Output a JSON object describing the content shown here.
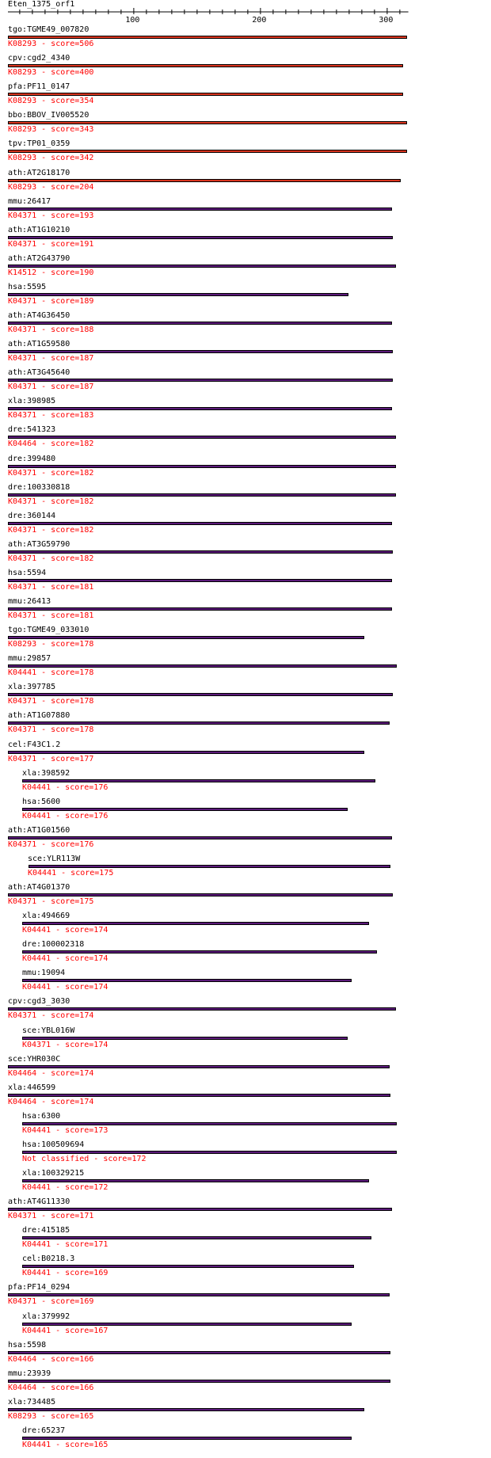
{
  "title": "Eten_1375_orf1",
  "axis": {
    "ticks": [
      100,
      200,
      300
    ],
    "min": 1,
    "max": 317
  },
  "colors": {
    "high": "#d8341e",
    "mid": "#5b1a7a",
    "text_sub": "#ff0000"
  },
  "hits": [
    {
      "label": "tgo:TGME49_007820",
      "sub": "K08293 - score=506",
      "start": 1,
      "end": 316,
      "level": "high",
      "indent": 0
    },
    {
      "label": "cpv:cgd2_4340",
      "sub": "K08293 - score=400",
      "start": 1,
      "end": 313,
      "level": "high",
      "indent": 0
    },
    {
      "label": "pfa:PF11_0147",
      "sub": "K08293 - score=354",
      "start": 1,
      "end": 313,
      "level": "high",
      "indent": 0
    },
    {
      "label": "bbo:BBOV_IV005520",
      "sub": "K08293 - score=343",
      "start": 1,
      "end": 316,
      "level": "high",
      "indent": 0
    },
    {
      "label": "tpv:TP01_0359",
      "sub": "K08293 - score=342",
      "start": 1,
      "end": 316,
      "level": "high",
      "indent": 0
    },
    {
      "label": "ath:AT2G18170",
      "sub": "K08293 - score=204",
      "start": 1,
      "end": 311,
      "level": "high",
      "indent": 0
    },
    {
      "label": "mmu:26417",
      "sub": "K04371 - score=193",
      "start": 1,
      "end": 304,
      "level": "mid",
      "indent": 0
    },
    {
      "label": "ath:AT1G10210",
      "sub": "K04371 - score=191",
      "start": 1,
      "end": 305,
      "level": "mid",
      "indent": 0
    },
    {
      "label": "ath:AT2G43790",
      "sub": "K14512 - score=190",
      "start": 1,
      "end": 307,
      "level": "mid",
      "indent": 0
    },
    {
      "label": "hsa:5595",
      "sub": "K04371 - score=189",
      "start": 1,
      "end": 270,
      "level": "mid",
      "indent": 0
    },
    {
      "label": "ath:AT4G36450",
      "sub": "K04371 - score=188",
      "start": 1,
      "end": 304,
      "level": "mid",
      "indent": 0
    },
    {
      "label": "ath:AT1G59580",
      "sub": "K04371 - score=187",
      "start": 1,
      "end": 305,
      "level": "mid",
      "indent": 0
    },
    {
      "label": "ath:AT3G45640",
      "sub": "K04371 - score=187",
      "start": 1,
      "end": 305,
      "level": "mid",
      "indent": 0
    },
    {
      "label": "xla:398985",
      "sub": "K04371 - score=183",
      "start": 1,
      "end": 304,
      "level": "mid",
      "indent": 0
    },
    {
      "label": "dre:541323",
      "sub": "K04464 - score=182",
      "start": 1,
      "end": 307,
      "level": "mid",
      "indent": 0
    },
    {
      "label": "dre:399480",
      "sub": "K04371 - score=182",
      "start": 1,
      "end": 307,
      "level": "mid",
      "indent": 0
    },
    {
      "label": "dre:100330818",
      "sub": "K04371 - score=182",
      "start": 1,
      "end": 307,
      "level": "mid",
      "indent": 0
    },
    {
      "label": "dre:360144",
      "sub": "K04371 - score=182",
      "start": 1,
      "end": 304,
      "level": "mid",
      "indent": 0
    },
    {
      "label": "ath:AT3G59790",
      "sub": "K04371 - score=182",
      "start": 1,
      "end": 305,
      "level": "mid",
      "indent": 0
    },
    {
      "label": "hsa:5594",
      "sub": "K04371 - score=181",
      "start": 1,
      "end": 304,
      "level": "mid",
      "indent": 0
    },
    {
      "label": "mmu:26413",
      "sub": "K04371 - score=181",
      "start": 1,
      "end": 304,
      "level": "mid",
      "indent": 0
    },
    {
      "label": "tgo:TGME49_033010",
      "sub": "K08293 - score=178",
      "start": 1,
      "end": 282,
      "level": "mid",
      "indent": 0
    },
    {
      "label": "mmu:29857",
      "sub": "K04441 - score=178",
      "start": 1,
      "end": 308,
      "level": "mid",
      "indent": 0
    },
    {
      "label": "xla:397785",
      "sub": "K04371 - score=178",
      "start": 1,
      "end": 305,
      "level": "mid",
      "indent": 0
    },
    {
      "label": "ath:AT1G07880",
      "sub": "K04371 - score=178",
      "start": 1,
      "end": 302,
      "level": "mid",
      "indent": 0
    },
    {
      "label": "cel:F43C1.2",
      "sub": "K04371 - score=177",
      "start": 1,
      "end": 282,
      "level": "mid",
      "indent": 0
    },
    {
      "label": "xla:398592",
      "sub": "K04441 - score=176",
      "start": 12,
      "end": 291,
      "level": "mid",
      "indent": 18
    },
    {
      "label": "hsa:5600",
      "sub": "K04441 - score=176",
      "start": 12,
      "end": 269,
      "level": "mid",
      "indent": 18
    },
    {
      "label": "ath:AT1G01560",
      "sub": "K04371 - score=176",
      "start": 1,
      "end": 304,
      "level": "mid",
      "indent": 0
    },
    {
      "label": "sce:YLR113W",
      "sub": "K04441 - score=175",
      "start": 17,
      "end": 303,
      "level": "mid",
      "indent": 25
    },
    {
      "label": "ath:AT4G01370",
      "sub": "K04371 - score=175",
      "start": 1,
      "end": 305,
      "level": "mid",
      "indent": 0
    },
    {
      "label": "xla:494669",
      "sub": "K04441 - score=174",
      "start": 12,
      "end": 286,
      "level": "mid",
      "indent": 18
    },
    {
      "label": "dre:100002318",
      "sub": "K04441 - score=174",
      "start": 12,
      "end": 292,
      "level": "mid",
      "indent": 18
    },
    {
      "label": "mmu:19094",
      "sub": "K04441 - score=174",
      "start": 12,
      "end": 272,
      "level": "mid",
      "indent": 18
    },
    {
      "label": "cpv:cgd3_3030",
      "sub": "K04371 - score=174",
      "start": 1,
      "end": 307,
      "level": "mid",
      "indent": 0
    },
    {
      "label": "sce:YBL016W",
      "sub": "K04371 - score=174",
      "start": 12,
      "end": 269,
      "level": "mid",
      "indent": 18
    },
    {
      "label": "sce:YHR030C",
      "sub": "K04464 - score=174",
      "start": 1,
      "end": 302,
      "level": "mid",
      "indent": 0
    },
    {
      "label": "xla:446599",
      "sub": "K04464 - score=174",
      "start": 1,
      "end": 303,
      "level": "mid",
      "indent": 0
    },
    {
      "label": "hsa:6300",
      "sub": "K04441 - score=173",
      "start": 12,
      "end": 308,
      "level": "mid",
      "indent": 18
    },
    {
      "label": "hsa:100509694",
      "sub": "Not classified - score=172",
      "start": 12,
      "end": 308,
      "level": "mid",
      "indent": 18
    },
    {
      "label": "xla:100329215",
      "sub": "K04441 - score=172",
      "start": 12,
      "end": 286,
      "level": "mid",
      "indent": 18
    },
    {
      "label": "ath:AT4G11330",
      "sub": "K04371 - score=171",
      "start": 1,
      "end": 304,
      "level": "mid",
      "indent": 0
    },
    {
      "label": "dre:415185",
      "sub": "K04441 - score=171",
      "start": 12,
      "end": 288,
      "level": "mid",
      "indent": 18
    },
    {
      "label": "cel:B0218.3",
      "sub": "K04441 - score=169",
      "start": 12,
      "end": 274,
      "level": "mid",
      "indent": 18
    },
    {
      "label": "pfa:PF14_0294",
      "sub": "K04371 - score=169",
      "start": 1,
      "end": 302,
      "level": "mid",
      "indent": 0
    },
    {
      "label": "xla:379992",
      "sub": "K04441 - score=167",
      "start": 12,
      "end": 272,
      "level": "mid",
      "indent": 18
    },
    {
      "label": "hsa:5598",
      "sub": "K04464 - score=166",
      "start": 1,
      "end": 303,
      "level": "mid",
      "indent": 0
    },
    {
      "label": "mmu:23939",
      "sub": "K04464 - score=166",
      "start": 1,
      "end": 303,
      "level": "mid",
      "indent": 0
    },
    {
      "label": "xla:734485",
      "sub": "K08293 - score=165",
      "start": 1,
      "end": 282,
      "level": "mid",
      "indent": 0
    },
    {
      "label": "dre:65237",
      "sub": "K04441 - score=165",
      "start": 12,
      "end": 272,
      "level": "mid",
      "indent": 18
    }
  ]
}
